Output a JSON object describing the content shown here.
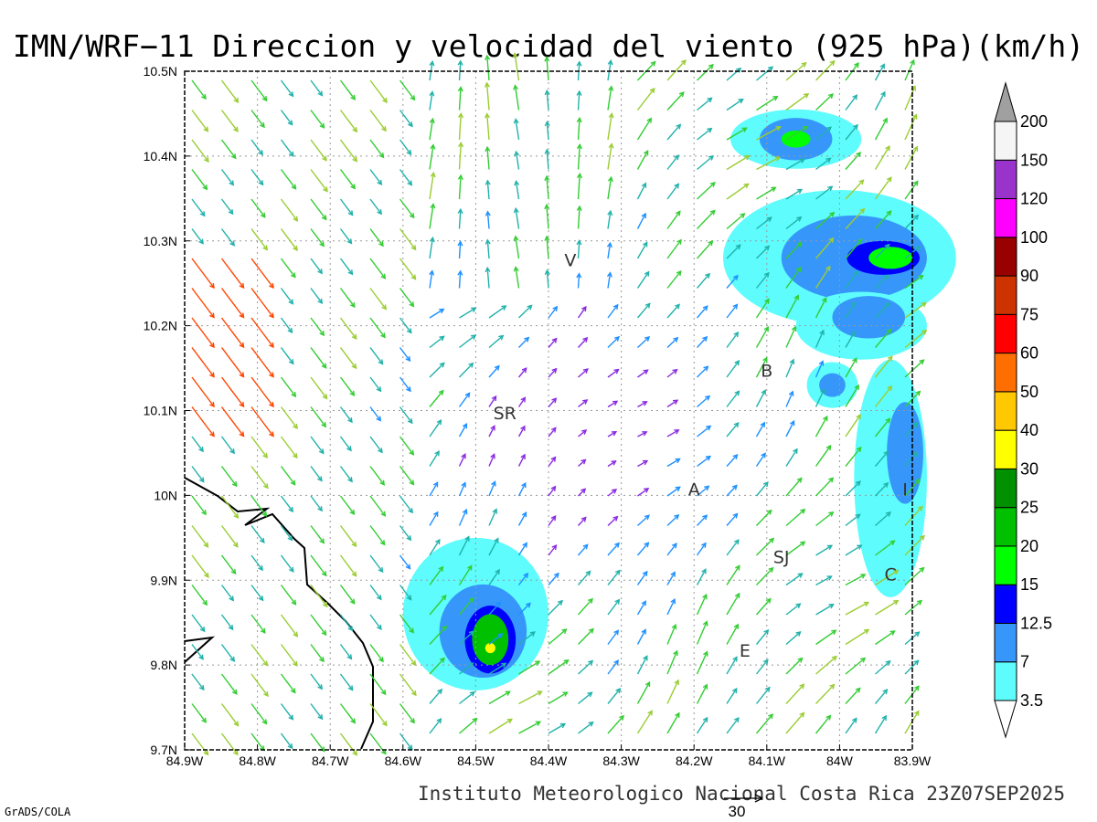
{
  "title": "IMN/WRF−11 Direccion y velocidad del viento (925 hPa)(km/h)",
  "footer": "Instituto Meteorologico Nacional Costa Rica 23Z07SEP2025",
  "software_credit": "GrADS/COLA",
  "reference_vector": {
    "label": "30",
    "value": 30
  },
  "axes": {
    "lon_ticks": [
      "84.9W",
      "84.8W",
      "84.7W",
      "84.6W",
      "84.5W",
      "84.4W",
      "84.3W",
      "84.2W",
      "84.1W",
      "84W",
      "83.9W"
    ],
    "lat_ticks": [
      "10.5N",
      "10.4N",
      "10.3N",
      "10.2N",
      "10.1N",
      "10N",
      "9.9N",
      "9.8N",
      "9.7N"
    ],
    "lon_range": [
      -84.9,
      -83.9
    ],
    "lat_range": [
      9.7,
      10.5
    ],
    "grid": "dotted every 0.1 degree"
  },
  "cities": [
    {
      "label": "V",
      "lon": -84.37,
      "lat": 10.27
    },
    {
      "label": "SR",
      "lon": -84.46,
      "lat": 10.09
    },
    {
      "label": "B",
      "lon": -84.1,
      "lat": 10.14
    },
    {
      "label": "A",
      "lon": -84.2,
      "lat": 10.0
    },
    {
      "label": "I",
      "lon": -83.91,
      "lat": 10.0
    },
    {
      "label": "SJ",
      "lon": -84.08,
      "lat": 9.92
    },
    {
      "label": "C",
      "lon": -83.93,
      "lat": 9.9
    },
    {
      "label": "E",
      "lon": -84.13,
      "lat": 9.81
    }
  ],
  "colorbar": {
    "labels": [
      "3.5",
      "7",
      "12.5",
      "15",
      "20",
      "25",
      "30",
      "40",
      "50",
      "60",
      "75",
      "90",
      "100",
      "120",
      "150",
      "200"
    ],
    "colors": [
      "#ffffff",
      "#5efcfc",
      "#3796fa",
      "#0000ff",
      "#00ff00",
      "#00c000",
      "#009000",
      "#ffff00",
      "#ffc800",
      "#ff6e00",
      "#ff0000",
      "#cc3300",
      "#990000",
      "#ff00ff",
      "#9933cc",
      "#f5f5f5",
      "#a0a0a0"
    ],
    "units": "km/h"
  },
  "palette": {
    "slow": "#8a2be2",
    "low": "#1e90ff",
    "mid": "#20b2aa",
    "fast": "#32cd32",
    "faster": "#9acd32",
    "strong": "#ffa500",
    "stronger": "#ff4500"
  },
  "shaded_regions": [
    {
      "name": "north-cloud",
      "color": "#5efcfc",
      "lon": -84.06,
      "lat": 10.42,
      "rx": 0.09,
      "ry": 0.035
    },
    {
      "name": "north-cloud-core",
      "color": "#3796fa",
      "lon": -84.06,
      "lat": 10.42,
      "rx": 0.05,
      "ry": 0.025
    },
    {
      "name": "north-cloud-peak",
      "color": "#00ff00",
      "lon": -84.06,
      "lat": 10.42,
      "rx": 0.02,
      "ry": 0.01
    },
    {
      "name": "ne-band",
      "color": "#5efcfc",
      "lon": -84.0,
      "lat": 10.28,
      "rx": 0.16,
      "ry": 0.08
    },
    {
      "name": "ne-band-core",
      "color": "#3796fa",
      "lon": -83.98,
      "lat": 10.28,
      "rx": 0.1,
      "ry": 0.05
    },
    {
      "name": "ne-band-blue",
      "color": "#0000ff",
      "lon": -83.94,
      "lat": 10.28,
      "rx": 0.05,
      "ry": 0.02
    },
    {
      "name": "ne-band-peak",
      "color": "#00ff00",
      "lon": -83.93,
      "lat": 10.28,
      "rx": 0.03,
      "ry": 0.013
    },
    {
      "name": "ne-lobe-2",
      "color": "#5efcfc",
      "lon": -83.97,
      "lat": 10.2,
      "rx": 0.09,
      "ry": 0.04
    },
    {
      "name": "ne-lobe-2-core",
      "color": "#3796fa",
      "lon": -83.96,
      "lat": 10.21,
      "rx": 0.05,
      "ry": 0.025
    },
    {
      "name": "blob-b",
      "color": "#5efcfc",
      "lon": -84.01,
      "lat": 10.13,
      "rx": 0.035,
      "ry": 0.027
    },
    {
      "name": "blob-b-core",
      "color": "#3796fa",
      "lon": -84.01,
      "lat": 10.13,
      "rx": 0.018,
      "ry": 0.014
    },
    {
      "name": "east-cloud",
      "color": "#5efcfc",
      "lon": -83.93,
      "lat": 10.02,
      "rx": 0.05,
      "ry": 0.14
    },
    {
      "name": "east-cloud-core",
      "color": "#3796fa",
      "lon": -83.91,
      "lat": 10.05,
      "rx": 0.025,
      "ry": 0.06
    },
    {
      "name": "sw-cloud",
      "color": "#5efcfc",
      "lon": -84.5,
      "lat": 9.86,
      "rx": 0.1,
      "ry": 0.09
    },
    {
      "name": "sw-cloud-core",
      "color": "#3796fa",
      "lon": -84.49,
      "lat": 9.84,
      "rx": 0.06,
      "ry": 0.055
    },
    {
      "name": "sw-cloud-blue",
      "color": "#0000ff",
      "lon": -84.48,
      "lat": 9.83,
      "rx": 0.035,
      "ry": 0.04
    },
    {
      "name": "sw-cloud-green",
      "color": "#00c000",
      "lon": -84.48,
      "lat": 9.83,
      "rx": 0.025,
      "ry": 0.03
    },
    {
      "name": "sw-cloud-peak",
      "color": "#ffff00",
      "lon": -84.48,
      "lat": 9.82,
      "rx": 0.007,
      "ry": 0.006
    }
  ]
}
